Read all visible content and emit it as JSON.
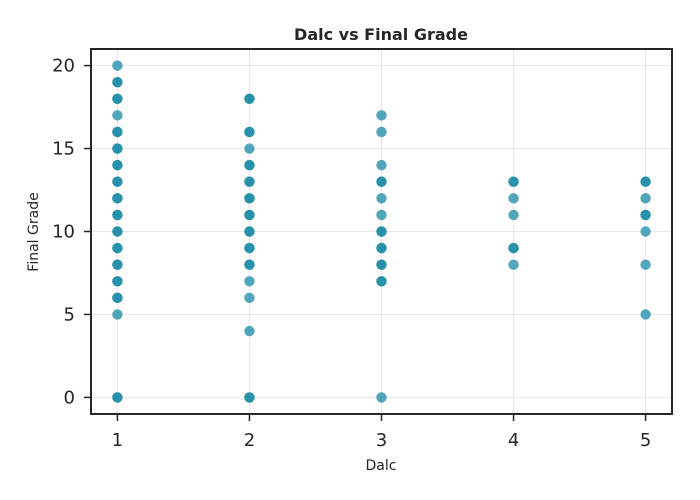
{
  "chart_data": {
    "type": "scatter",
    "title": "Dalc vs Final Grade",
    "xlabel": "Dalc",
    "ylabel": "Final Grade",
    "xlim": [
      0.8,
      5.2
    ],
    "ylim": [
      -1,
      21
    ],
    "x_ticks": [
      1,
      2,
      3,
      4,
      5
    ],
    "y_ticks": [
      0,
      5,
      10,
      15,
      20
    ],
    "grid": true,
    "color": "#1a8aa6",
    "point_opacity": 0.75,
    "points": [
      {
        "x": 1,
        "y": 0
      },
      {
        "x": 1,
        "y": 0
      },
      {
        "x": 1,
        "y": 5
      },
      {
        "x": 1,
        "y": 6
      },
      {
        "x": 1,
        "y": 6
      },
      {
        "x": 1,
        "y": 7
      },
      {
        "x": 1,
        "y": 7
      },
      {
        "x": 1,
        "y": 8
      },
      {
        "x": 1,
        "y": 8
      },
      {
        "x": 1,
        "y": 9
      },
      {
        "x": 1,
        "y": 9
      },
      {
        "x": 1,
        "y": 10
      },
      {
        "x": 1,
        "y": 10
      },
      {
        "x": 1,
        "y": 11
      },
      {
        "x": 1,
        "y": 11
      },
      {
        "x": 1,
        "y": 12
      },
      {
        "x": 1,
        "y": 12
      },
      {
        "x": 1,
        "y": 13
      },
      {
        "x": 1,
        "y": 13
      },
      {
        "x": 1,
        "y": 14
      },
      {
        "x": 1,
        "y": 14
      },
      {
        "x": 1,
        "y": 15
      },
      {
        "x": 1,
        "y": 15
      },
      {
        "x": 1,
        "y": 16
      },
      {
        "x": 1,
        "y": 16
      },
      {
        "x": 1,
        "y": 17
      },
      {
        "x": 1,
        "y": 18
      },
      {
        "x": 1,
        "y": 18
      },
      {
        "x": 1,
        "y": 19
      },
      {
        "x": 1,
        "y": 19
      },
      {
        "x": 1,
        "y": 20
      },
      {
        "x": 2,
        "y": 0
      },
      {
        "x": 2,
        "y": 0
      },
      {
        "x": 2,
        "y": 4
      },
      {
        "x": 2,
        "y": 6
      },
      {
        "x": 2,
        "y": 7
      },
      {
        "x": 2,
        "y": 8
      },
      {
        "x": 2,
        "y": 8
      },
      {
        "x": 2,
        "y": 9
      },
      {
        "x": 2,
        "y": 9
      },
      {
        "x": 2,
        "y": 10
      },
      {
        "x": 2,
        "y": 10
      },
      {
        "x": 2,
        "y": 11
      },
      {
        "x": 2,
        "y": 11
      },
      {
        "x": 2,
        "y": 12
      },
      {
        "x": 2,
        "y": 12
      },
      {
        "x": 2,
        "y": 13
      },
      {
        "x": 2,
        "y": 13
      },
      {
        "x": 2,
        "y": 14
      },
      {
        "x": 2,
        "y": 14
      },
      {
        "x": 2,
        "y": 15
      },
      {
        "x": 2,
        "y": 16
      },
      {
        "x": 2,
        "y": 16
      },
      {
        "x": 2,
        "y": 18
      },
      {
        "x": 2,
        "y": 18
      },
      {
        "x": 3,
        "y": 0
      },
      {
        "x": 3,
        "y": 7
      },
      {
        "x": 3,
        "y": 7
      },
      {
        "x": 3,
        "y": 8
      },
      {
        "x": 3,
        "y": 8
      },
      {
        "x": 3,
        "y": 9
      },
      {
        "x": 3,
        "y": 9
      },
      {
        "x": 3,
        "y": 10
      },
      {
        "x": 3,
        "y": 10
      },
      {
        "x": 3,
        "y": 11
      },
      {
        "x": 3,
        "y": 12
      },
      {
        "x": 3,
        "y": 13
      },
      {
        "x": 3,
        "y": 13
      },
      {
        "x": 3,
        "y": 14
      },
      {
        "x": 3,
        "y": 16
      },
      {
        "x": 3,
        "y": 17
      },
      {
        "x": 4,
        "y": 8
      },
      {
        "x": 4,
        "y": 9
      },
      {
        "x": 4,
        "y": 9
      },
      {
        "x": 4,
        "y": 11
      },
      {
        "x": 4,
        "y": 12
      },
      {
        "x": 4,
        "y": 13
      },
      {
        "x": 4,
        "y": 13
      },
      {
        "x": 5,
        "y": 5
      },
      {
        "x": 5,
        "y": 8
      },
      {
        "x": 5,
        "y": 10
      },
      {
        "x": 5,
        "y": 11
      },
      {
        "x": 5,
        "y": 11
      },
      {
        "x": 5,
        "y": 12
      },
      {
        "x": 5,
        "y": 13
      },
      {
        "x": 5,
        "y": 13
      }
    ]
  }
}
